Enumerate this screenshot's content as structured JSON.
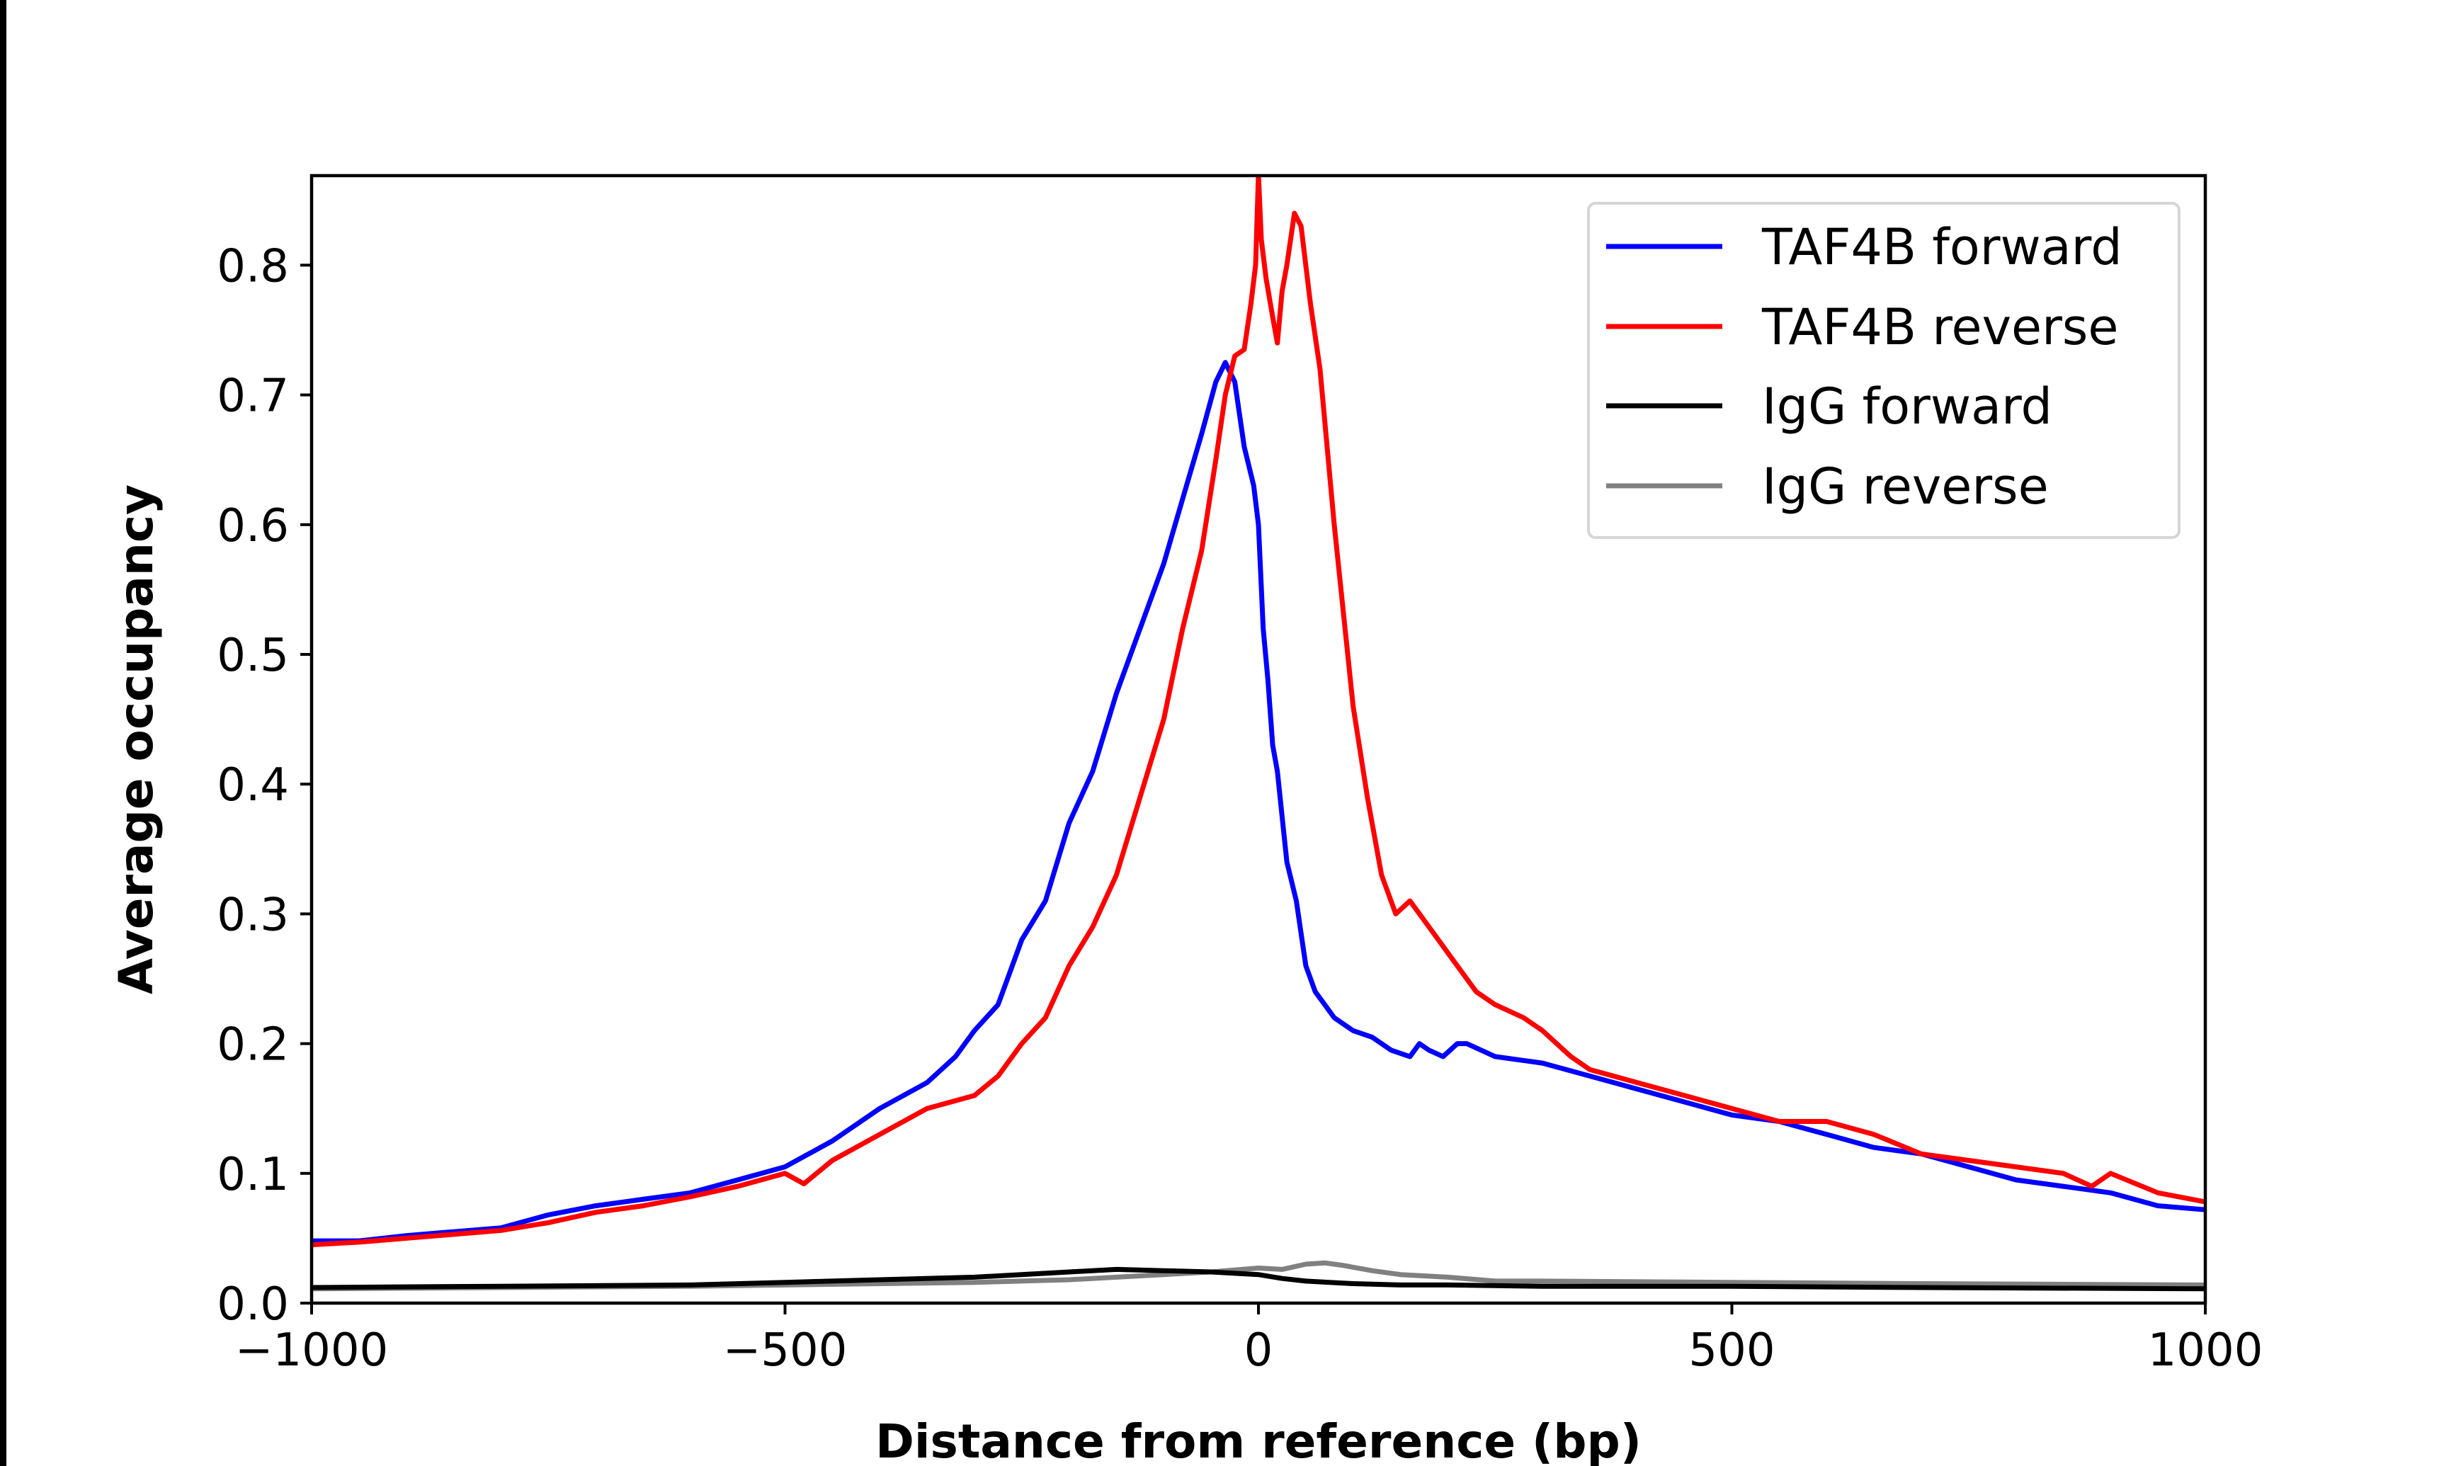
{
  "chart_data": {
    "type": "line",
    "title": "",
    "xlabel": "Distance from reference (bp)",
    "ylabel": "Average occupancy",
    "xlim": [
      -1000,
      1000
    ],
    "ylim": [
      0,
      0.869
    ],
    "xticks": [
      -1000,
      -500,
      0,
      500,
      1000
    ],
    "xtick_labels": [
      "−1000",
      "−500",
      "0",
      "500",
      "1000"
    ],
    "yticks": [
      0.0,
      0.1,
      0.2,
      0.3,
      0.4,
      0.5,
      0.6,
      0.7,
      0.8
    ],
    "ytick_labels": [
      "0.0",
      "0.1",
      "0.2",
      "0.3",
      "0.4",
      "0.5",
      "0.6",
      "0.7",
      "0.8"
    ],
    "grid": false,
    "legend_position": "top-right",
    "series": [
      {
        "name": "TAF4B forward",
        "color": "#0000ff",
        "x": [
          -1000,
          -950,
          -900,
          -850,
          -800,
          -750,
          -700,
          -650,
          -600,
          -550,
          -500,
          -450,
          -400,
          -350,
          -320,
          -300,
          -275,
          -250,
          -225,
          -200,
          -175,
          -150,
          -125,
          -100,
          -80,
          -60,
          -45,
          -35,
          -25,
          -15,
          -5,
          0,
          5,
          10,
          15,
          20,
          30,
          40,
          50,
          60,
          70,
          80,
          100,
          120,
          140,
          160,
          170,
          180,
          195,
          210,
          220,
          250,
          300,
          350,
          400,
          450,
          500,
          550,
          600,
          650,
          700,
          750,
          800,
          850,
          900,
          950,
          1000
        ],
        "y": [
          0.048,
          0.048,
          0.052,
          0.055,
          0.058,
          0.068,
          0.075,
          0.08,
          0.085,
          0.095,
          0.105,
          0.125,
          0.15,
          0.17,
          0.19,
          0.21,
          0.23,
          0.28,
          0.31,
          0.37,
          0.41,
          0.47,
          0.52,
          0.57,
          0.62,
          0.67,
          0.71,
          0.725,
          0.71,
          0.66,
          0.63,
          0.6,
          0.52,
          0.48,
          0.43,
          0.41,
          0.34,
          0.31,
          0.26,
          0.24,
          0.23,
          0.22,
          0.21,
          0.205,
          0.195,
          0.19,
          0.2,
          0.195,
          0.19,
          0.2,
          0.2,
          0.19,
          0.185,
          0.175,
          0.165,
          0.155,
          0.145,
          0.14,
          0.13,
          0.12,
          0.115,
          0.105,
          0.095,
          0.09,
          0.085,
          0.075,
          0.072
        ]
      },
      {
        "name": "TAF4B reverse",
        "color": "#ff0000",
        "x": [
          -1000,
          -950,
          -900,
          -850,
          -800,
          -750,
          -700,
          -650,
          -600,
          -550,
          -500,
          -480,
          -450,
          -400,
          -350,
          -300,
          -275,
          -250,
          -225,
          -200,
          -175,
          -150,
          -125,
          -100,
          -80,
          -60,
          -45,
          -35,
          -25,
          -15,
          -8,
          -3,
          0,
          3,
          8,
          15,
          20,
          25,
          30,
          38,
          45,
          55,
          65,
          80,
          100,
          115,
          130,
          145,
          160,
          180,
          200,
          230,
          250,
          280,
          300,
          330,
          350,
          400,
          450,
          500,
          550,
          600,
          650,
          700,
          750,
          800,
          850,
          880,
          900,
          950,
          1000
        ],
        "y": [
          0.045,
          0.047,
          0.05,
          0.053,
          0.056,
          0.062,
          0.07,
          0.075,
          0.082,
          0.09,
          0.1,
          0.092,
          0.11,
          0.13,
          0.15,
          0.16,
          0.175,
          0.2,
          0.22,
          0.26,
          0.29,
          0.33,
          0.39,
          0.45,
          0.52,
          0.58,
          0.65,
          0.7,
          0.73,
          0.735,
          0.77,
          0.8,
          0.87,
          0.82,
          0.79,
          0.76,
          0.74,
          0.78,
          0.8,
          0.84,
          0.83,
          0.77,
          0.72,
          0.6,
          0.46,
          0.39,
          0.33,
          0.3,
          0.31,
          0.29,
          0.27,
          0.24,
          0.23,
          0.22,
          0.21,
          0.19,
          0.18,
          0.17,
          0.16,
          0.15,
          0.14,
          0.14,
          0.13,
          0.115,
          0.11,
          0.105,
          0.1,
          0.09,
          0.1,
          0.085,
          0.078
        ]
      },
      {
        "name": "IgG forward",
        "color": "#000000",
        "x": [
          -1000,
          -800,
          -600,
          -500,
          -400,
          -300,
          -200,
          -150,
          -100,
          -50,
          0,
          25,
          50,
          75,
          100,
          150,
          200,
          300,
          500,
          700,
          1000
        ],
        "y": [
          0.012,
          0.013,
          0.014,
          0.016,
          0.018,
          0.02,
          0.024,
          0.026,
          0.025,
          0.024,
          0.022,
          0.019,
          0.017,
          0.016,
          0.015,
          0.014,
          0.014,
          0.013,
          0.013,
          0.012,
          0.011
        ]
      },
      {
        "name": "IgG reverse",
        "color": "#808080",
        "x": [
          -1000,
          -800,
          -600,
          -500,
          -400,
          -300,
          -200,
          -100,
          -50,
          0,
          25,
          50,
          70,
          90,
          120,
          150,
          200,
          250,
          300,
          500,
          700,
          1000
        ],
        "y": [
          0.011,
          0.012,
          0.013,
          0.014,
          0.015,
          0.016,
          0.018,
          0.022,
          0.024,
          0.027,
          0.026,
          0.03,
          0.031,
          0.029,
          0.025,
          0.022,
          0.02,
          0.017,
          0.017,
          0.016,
          0.015,
          0.014
        ]
      }
    ]
  }
}
